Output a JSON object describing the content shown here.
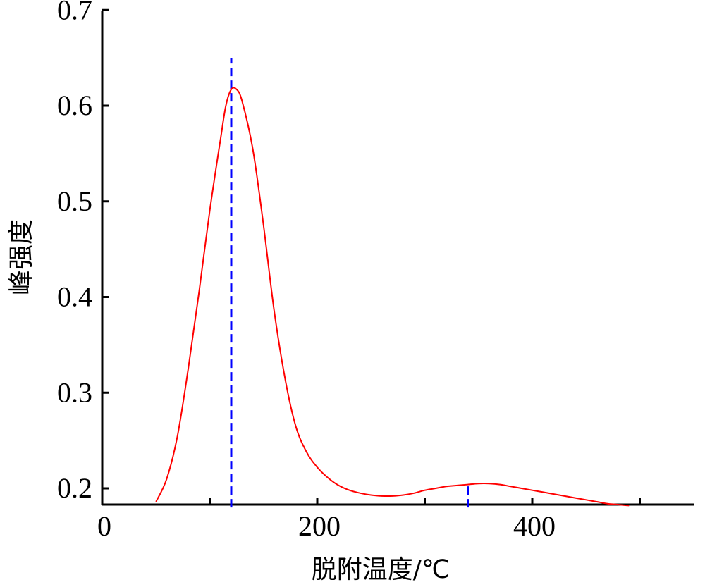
{
  "chart_data": {
    "type": "line",
    "title": "",
    "xlabel": "脱附温度/℃",
    "ylabel": "峰强度",
    "xlim": [
      0,
      550
    ],
    "ylim": [
      0.18,
      0.7
    ],
    "x_ticks": [
      0,
      100,
      200,
      300,
      400,
      500
    ],
    "x_tick_labels": [
      "0",
      "",
      "200",
      "",
      "400",
      ""
    ],
    "y_ticks": [
      0.2,
      0.3,
      0.4,
      0.5,
      0.6,
      0.7
    ],
    "y_tick_labels": [
      "0.2",
      "0.3",
      "0.4",
      "0.5",
      "0.6",
      "0.7"
    ],
    "grid": false,
    "series": [
      {
        "color": "#ff0000",
        "x": [
          50,
          60,
          70,
          80,
          90,
          100,
          110,
          115,
          120,
          125,
          130,
          140,
          150,
          160,
          170,
          180,
          190,
          200,
          210,
          220,
          230,
          240,
          250,
          260,
          270,
          280,
          290,
          300,
          310,
          320,
          330,
          340,
          350,
          360,
          370,
          380,
          390,
          400,
          410,
          420,
          430,
          440,
          450,
          460,
          470,
          480,
          490
        ],
        "y": [
          0.186,
          0.21,
          0.255,
          0.325,
          0.405,
          0.49,
          0.565,
          0.6,
          0.617,
          0.617,
          0.605,
          0.555,
          0.475,
          0.385,
          0.315,
          0.265,
          0.238,
          0.222,
          0.211,
          0.203,
          0.198,
          0.195,
          0.193,
          0.192,
          0.192,
          0.193,
          0.195,
          0.198,
          0.2,
          0.202,
          0.203,
          0.204,
          0.205,
          0.205,
          0.204,
          0.202,
          0.2,
          0.198,
          0.196,
          0.194,
          0.192,
          0.19,
          0.188,
          0.186,
          0.184,
          0.183,
          0.182
        ]
      }
    ],
    "markers": [
      {
        "x": 120,
        "y_from": 0.18,
        "y_to": 0.65,
        "color": "#0000ff",
        "style": "dashed"
      },
      {
        "x": 340,
        "y_from": 0.18,
        "y_to": 0.205,
        "color": "#0000ff",
        "style": "dashed"
      }
    ]
  }
}
